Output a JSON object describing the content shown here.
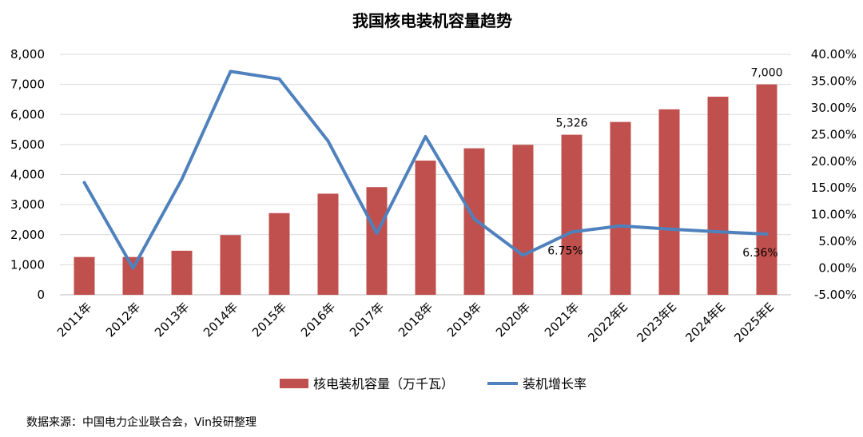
{
  "chart_data": {
    "type": "bar",
    "title": "我国核电装机容量趋势",
    "categories": [
      "2011年",
      "2012年",
      "2013年",
      "2014年",
      "2015年",
      "2016年",
      "2017年",
      "2018年",
      "2019年",
      "2020年",
      "2021年",
      "2022年E",
      "2023年E",
      "2024年E",
      "2025年E"
    ],
    "series": [
      {
        "name": "核电装机容量（万千瓦）",
        "type": "bar",
        "axis": "left",
        "color": "#c0504d",
        "values": [
          1257,
          1257,
          1466,
          1988,
          2717,
          3364,
          3582,
          4464,
          4874,
          4989,
          5326,
          5750,
          6170,
          6590,
          7000
        ]
      },
      {
        "name": "装机增长率",
        "type": "line",
        "axis": "right",
        "color": "#4f81bd",
        "values": [
          16.0,
          0.0,
          16.6,
          36.8,
          35.4,
          23.8,
          6.5,
          24.6,
          9.2,
          2.4,
          6.75,
          7.9,
          7.3,
          6.8,
          6.36
        ]
      }
    ],
    "y_left": {
      "min": 0,
      "max": 8000,
      "step": 1000,
      "ticks": [
        "0",
        "1,000",
        "2,000",
        "3,000",
        "4,000",
        "5,000",
        "6,000",
        "7,000",
        "8,000"
      ]
    },
    "y_right": {
      "min": -5,
      "max": 40,
      "step": 5,
      "ticks": [
        "-5.00%",
        "0.00%",
        "5.00%",
        "10.00%",
        "15.00%",
        "20.00%",
        "25.00%",
        "30.00%",
        "35.00%",
        "40.00%"
      ]
    },
    "data_labels": [
      {
        "series": 0,
        "index": 10,
        "text": "5,326"
      },
      {
        "series": 0,
        "index": 14,
        "text": "7,000"
      },
      {
        "series": 1,
        "index": 10,
        "text": "6.75%"
      },
      {
        "series": 1,
        "index": 14,
        "text": "6.36%"
      }
    ],
    "grid": true,
    "legend_position": "bottom"
  },
  "source_note": "数据来源：中国电力企业联合会，Vin投研整理"
}
